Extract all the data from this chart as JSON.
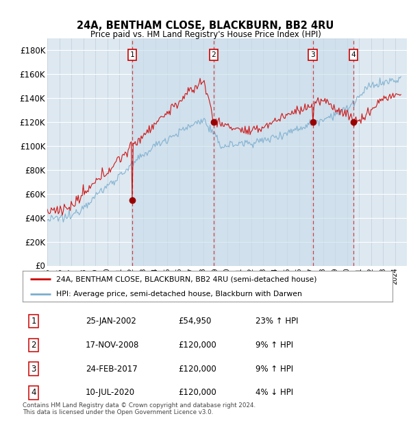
{
  "title1": "24A, BENTHAM CLOSE, BLACKBURN, BB2 4RU",
  "title2": "Price paid vs. HM Land Registry's House Price Index (HPI)",
  "ylabel_ticks": [
    "£0",
    "£20K",
    "£40K",
    "£60K",
    "£80K",
    "£100K",
    "£120K",
    "£140K",
    "£160K",
    "£180K"
  ],
  "ytick_values": [
    0,
    20000,
    40000,
    60000,
    80000,
    100000,
    120000,
    140000,
    160000,
    180000
  ],
  "ylim": [
    0,
    190000
  ],
  "sale_dates_num": [
    2002.07,
    2008.88,
    2017.15,
    2020.53
  ],
  "sale_prices": [
    54950,
    120000,
    120000,
    120000
  ],
  "sale_labels": [
    "1",
    "2",
    "3",
    "4"
  ],
  "legend_line1": "24A, BENTHAM CLOSE, BLACKBURN, BB2 4RU (semi-detached house)",
  "legend_line2": "HPI: Average price, semi-detached house, Blackburn with Darwen",
  "table_rows": [
    [
      "1",
      "25-JAN-2002",
      "£54,950",
      "23% ↑ HPI"
    ],
    [
      "2",
      "17-NOV-2008",
      "£120,000",
      "9% ↑ HPI"
    ],
    [
      "3",
      "24-FEB-2017",
      "£120,000",
      "9% ↑ HPI"
    ],
    [
      "4",
      "10-JUL-2020",
      "£120,000",
      "4% ↓ HPI"
    ]
  ],
  "footer": "Contains HM Land Registry data © Crown copyright and database right 2024.\nThis data is licensed under the Open Government Licence v3.0.",
  "line_color_red": "#cc0000",
  "line_color_blue": "#7aadcf",
  "shade_color": "#ddeeff",
  "bg_color": "#dde8f0",
  "grid_color": "#c8d8e8",
  "dashed_color": "#cc0000"
}
